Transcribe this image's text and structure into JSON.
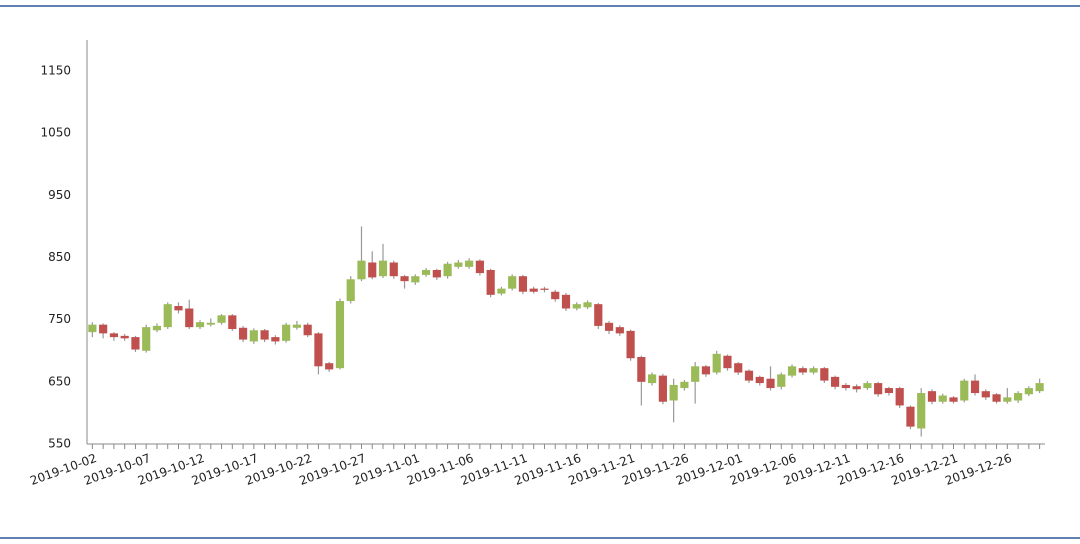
{
  "chart_data": {
    "type": "candlestick",
    "categories": [
      "2019-10-02",
      null,
      null,
      null,
      null,
      "2019-10-07",
      null,
      null,
      null,
      null,
      "2019-10-12",
      null,
      null,
      null,
      null,
      "2019-10-17",
      null,
      null,
      null,
      null,
      "2019-10-22",
      null,
      null,
      null,
      null,
      "2019-10-27",
      null,
      null,
      null,
      null,
      "2019-11-01",
      null,
      null,
      null,
      null,
      "2019-11-06",
      null,
      null,
      null,
      null,
      "2019-11-11",
      null,
      null,
      null,
      null,
      "2019-11-16",
      null,
      null,
      null,
      null,
      "2019-11-21",
      null,
      null,
      null,
      null,
      "2019-11-26",
      null,
      null,
      null,
      null,
      "2019-12-01",
      null,
      null,
      null,
      null,
      "2019-12-06",
      null,
      null,
      null,
      null,
      "2019-12-11",
      null,
      null,
      null,
      null,
      "2019-12-16",
      null,
      null,
      null,
      null,
      "2019-12-21",
      null,
      null,
      null,
      null,
      "2019-12-26",
      null,
      null,
      null
    ],
    "open": [
      730,
      742,
      728,
      724,
      722,
      700,
      733,
      738,
      772,
      768,
      738,
      742,
      745,
      757,
      737,
      715,
      733,
      722,
      716,
      737,
      742,
      728,
      680,
      672,
      780,
      815,
      842,
      820,
      842,
      820,
      810,
      822,
      830,
      820,
      835,
      835,
      845,
      830,
      792,
      800,
      820,
      800,
      800,
      795,
      790,
      768,
      770,
      775,
      745,
      738,
      732,
      690,
      648,
      660,
      620,
      640,
      650,
      675,
      665,
      692,
      680,
      668,
      658,
      655,
      642,
      660,
      672,
      665,
      672,
      658,
      645,
      643,
      640,
      648,
      640,
      640,
      610,
      575,
      635,
      618,
      625,
      620,
      652,
      635,
      630,
      618,
      620,
      630,
      635
    ],
    "high": [
      746,
      744,
      730,
      727,
      724,
      742,
      744,
      778,
      778,
      782,
      749,
      752,
      759,
      759,
      740,
      736,
      735,
      725,
      745,
      748,
      745,
      730,
      682,
      784,
      820,
      900,
      860,
      872,
      845,
      822,
      823,
      833,
      832,
      843,
      846,
      849,
      847,
      832,
      803,
      823,
      822,
      803,
      803,
      798,
      793,
      778,
      781,
      777,
      748,
      741,
      734,
      692,
      665,
      663,
      655,
      653,
      682,
      677,
      700,
      694,
      682,
      670,
      660,
      675,
      665,
      678,
      675,
      675,
      674,
      660,
      648,
      646,
      651,
      650,
      642,
      642,
      612,
      640,
      638,
      631,
      627,
      655,
      662,
      638,
      632,
      640,
      635,
      643,
      655
    ],
    "low": [
      722,
      720,
      716,
      716,
      698,
      697,
      730,
      735,
      760,
      735,
      735,
      739,
      742,
      732,
      714,
      711,
      714,
      710,
      713,
      734,
      722,
      662,
      666,
      670,
      776,
      812,
      815,
      817,
      816,
      800,
      806,
      819,
      814,
      816,
      832,
      832,
      821,
      786,
      789,
      797,
      791,
      792,
      794,
      779,
      764,
      765,
      767,
      735,
      727,
      724,
      684,
      612,
      644,
      614,
      585,
      636,
      615,
      658,
      662,
      668,
      661,
      648,
      644,
      636,
      638,
      657,
      661,
      662,
      648,
      638,
      636,
      633,
      637,
      626,
      628,
      608,
      574,
      562,
      614,
      615,
      615,
      617,
      628,
      621,
      615,
      615,
      616,
      627,
      632
    ],
    "close": [
      742,
      728,
      722,
      720,
      702,
      738,
      740,
      775,
      765,
      738,
      746,
      745,
      757,
      735,
      718,
      733,
      718,
      715,
      742,
      742,
      725,
      675,
      670,
      780,
      815,
      845,
      818,
      845,
      820,
      812,
      820,
      830,
      818,
      840,
      842,
      845,
      825,
      790,
      800,
      820,
      795,
      795,
      798,
      783,
      768,
      775,
      778,
      740,
      732,
      728,
      688,
      650,
      662,
      618,
      645,
      650,
      675,
      662,
      695,
      672,
      665,
      652,
      648,
      640,
      662,
      675,
      665,
      672,
      652,
      642,
      640,
      638,
      648,
      630,
      632,
      612,
      578,
      632,
      618,
      628,
      618,
      652,
      632,
      625,
      618,
      625,
      632,
      640,
      648
    ],
    "up_color": "#9bbb59",
    "down_color": "#c0504d",
    "ylim": [
      550,
      1200
    ],
    "yticks": [
      550,
      650,
      750,
      850,
      950,
      1050,
      1150
    ]
  }
}
